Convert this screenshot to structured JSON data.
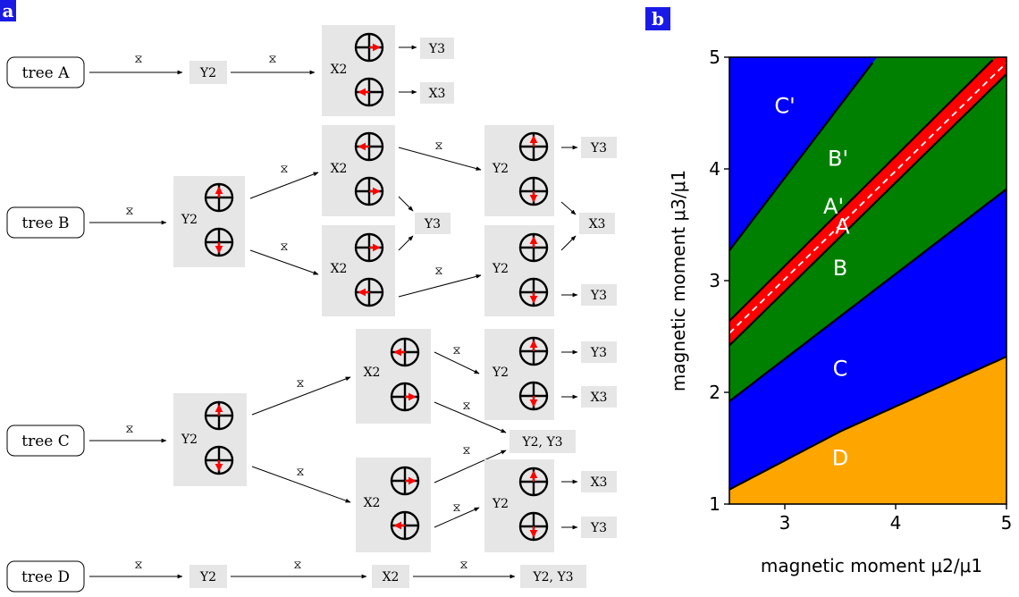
{
  "panels": {
    "a": {
      "label": "a",
      "trees": {
        "A": {
          "name": "tree A",
          "nodes": {
            "y2": "Y2",
            "x2": "X2"
          },
          "outputs": {
            "o1": "Y3",
            "o2": "X3"
          }
        },
        "B": {
          "name": "tree B",
          "nodes": {
            "y2": "Y2",
            "x2_top": "X2",
            "x2_bottom": "X2",
            "y2_top": "Y2",
            "y2_bottom": "Y2"
          },
          "outputs": {
            "mid1": "Y3",
            "mid2": "X3",
            "top": "Y3",
            "bottom": "Y3"
          }
        },
        "C": {
          "name": "tree C",
          "nodes": {
            "y2": "Y2",
            "x2_top": "X2",
            "x2_bottom": "X2",
            "y2_top": "Y2",
            "y2_bottom": "Y2"
          },
          "outputs": {
            "top1": "Y3",
            "top2": "X3",
            "mid": "Y2, Y3",
            "bottom1": "X3",
            "bottom2": "Y3"
          }
        },
        "D": {
          "name": "tree D",
          "nodes": {
            "y2": "Y2",
            "x2": "X2"
          },
          "outputs": {
            "o1": "Y2, Y3"
          }
        }
      },
      "edge_glyph": "⧖"
    },
    "b": {
      "label": "b"
    }
  },
  "colors": {
    "panel_label_bg": "#1a1ae6",
    "node_bg": "#e6e6e6",
    "arrow_red": "#ff0000",
    "region_blue": "#0000ff",
    "region_green": "#008000",
    "region_red": "#ff0000",
    "region_orange": "#ffa500"
  },
  "chart_data": {
    "type": "area",
    "title": "",
    "xlabel": "magnetic moment μ2/μ1",
    "ylabel": "magnetic moment μ3/μ1",
    "xlim": [
      2.5,
      5
    ],
    "ylim": [
      1,
      5
    ],
    "xticks": [
      "3",
      "4",
      "5"
    ],
    "yticks": [
      "1",
      "2",
      "3",
      "4",
      "5"
    ],
    "regions": [
      {
        "label": "C'",
        "color": "#0000ff",
        "label_at": [
          3.0,
          4.5
        ]
      },
      {
        "label": "B'",
        "color": "#008000",
        "label_at": [
          3.48,
          4.03
        ]
      },
      {
        "label": "A'",
        "color": "#ff0000",
        "label_at": [
          3.44,
          3.6
        ]
      },
      {
        "label": "A",
        "color": "#ff0000",
        "label_at": [
          3.52,
          3.42
        ]
      },
      {
        "label": "B",
        "color": "#008000",
        "label_at": [
          3.5,
          3.05
        ]
      },
      {
        "label": "C",
        "color": "#0000ff",
        "label_at": [
          3.5,
          2.15
        ]
      },
      {
        "label": "D",
        "color": "#ffa500",
        "label_at": [
          3.5,
          1.35
        ]
      }
    ],
    "boundaries": [
      {
        "name": "C'/B'",
        "points": [
          [
            2.5,
            3.27
          ],
          [
            3.83,
            5.0
          ]
        ]
      },
      {
        "name": "B'/A'",
        "points": [
          [
            2.5,
            2.64
          ],
          [
            4.9,
            5.0
          ]
        ]
      },
      {
        "name": "A'/A dashed",
        "points": [
          [
            2.5,
            2.53
          ],
          [
            5.0,
            4.95
          ]
        ],
        "dashed": true
      },
      {
        "name": "A/B",
        "points": [
          [
            2.5,
            2.42
          ],
          [
            5.0,
            4.85
          ]
        ]
      },
      {
        "name": "B/C",
        "points": [
          [
            2.5,
            1.92
          ],
          [
            5.0,
            3.82
          ]
        ]
      },
      {
        "name": "C/D",
        "points": [
          [
            2.5,
            1.13
          ],
          [
            3.5,
            1.65
          ],
          [
            5.0,
            2.32
          ]
        ]
      }
    ]
  }
}
